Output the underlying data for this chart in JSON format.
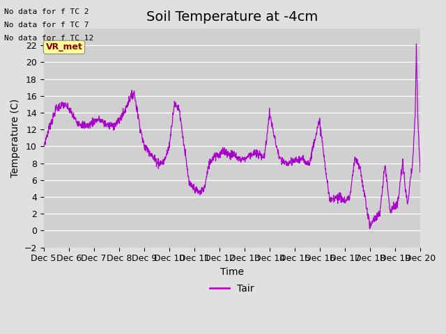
{
  "title": "Soil Temperature at -4cm",
  "ylabel": "Temperature (C)",
  "xlabel": "Time",
  "legend_label": "Tair",
  "no_data_texts": [
    "No data for f TC 2",
    "No data for f TC 7",
    "No data for f TC 12"
  ],
  "vr_met_label": "VR_met",
  "x_tick_labels": [
    "Dec 5",
    "Dec 6",
    "Dec 7",
    "Dec 8",
    "Dec 9",
    "Dec 10",
    "Dec 11",
    "Dec 12",
    "Dec 13",
    "Dec 14",
    "Dec 15",
    "Dec 16",
    "Dec 17",
    "Dec 18",
    "Dec 19",
    "Dec 20"
  ],
  "ylim": [
    -2,
    24
  ],
  "yticks": [
    -2,
    0,
    2,
    4,
    6,
    8,
    10,
    12,
    14,
    16,
    18,
    20,
    22
  ],
  "line_color": "#aa00cc",
  "legend_color": "#cc00cc",
  "bg_color": "#e0e0e0",
  "plot_bg_color": "#d0d0d0",
  "grid_color": "#ffffff",
  "title_fontsize": 14,
  "label_fontsize": 10,
  "tick_fontsize": 9
}
